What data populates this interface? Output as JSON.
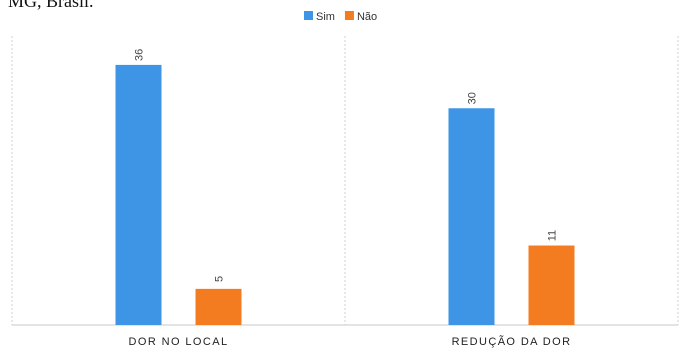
{
  "caption": "MG, Brasil.",
  "chart_data": {
    "type": "bar",
    "categories": [
      "DOR NO LOCAL",
      "REDUÇÃO DA DOR"
    ],
    "series": [
      {
        "name": "Sim",
        "values": [
          36,
          30
        ],
        "color": "#3E95E6"
      },
      {
        "name": "Não",
        "values": [
          5,
          11
        ],
        "color": "#F47C20"
      }
    ],
    "ylim": [
      0,
      40
    ],
    "grid": false,
    "legend": "top-center",
    "data_labels": true
  }
}
